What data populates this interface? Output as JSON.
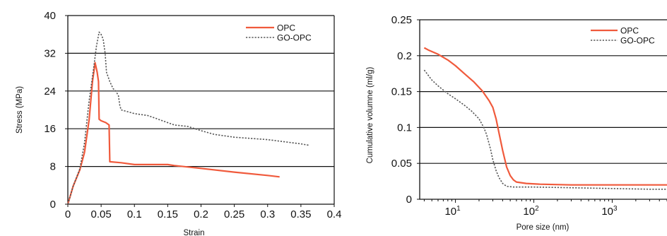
{
  "chart_data": [
    {
      "type": "line",
      "title": "",
      "xlabel": "Strain",
      "ylabel": "Stress (MPa)",
      "xlim": [
        0,
        0.4
      ],
      "ylim": [
        0,
        40
      ],
      "x_ticks": [
        "0",
        "0.05",
        "0.1",
        "0.15",
        "0.2",
        "0.25",
        "0.3",
        "0.35",
        "0.4"
      ],
      "y_ticks": [
        "0",
        "8",
        "16",
        "24",
        "32",
        "40"
      ],
      "grid": "horizontal",
      "legend": "top-right",
      "series": [
        {
          "name": "OPC",
          "color": "#f05a3c",
          "style": "solid",
          "points": [
            [
              0,
              0
            ],
            [
              0.008,
              3.8
            ],
            [
              0.018,
              7.3
            ],
            [
              0.025,
              11
            ],
            [
              0.032,
              18
            ],
            [
              0.037,
              26
            ],
            [
              0.041,
              30
            ],
            [
              0.044,
              28
            ],
            [
              0.046,
              26
            ],
            [
              0.047,
              18
            ],
            [
              0.05,
              17.7
            ],
            [
              0.057,
              17.3
            ],
            [
              0.062,
              16.8
            ],
            [
              0.063,
              9
            ],
            [
              0.08,
              8.8
            ],
            [
              0.1,
              8.4
            ],
            [
              0.15,
              8.4
            ],
            [
              0.16,
              8.2
            ],
            [
              0.2,
              7.6
            ],
            [
              0.25,
              6.8
            ],
            [
              0.3,
              6.1
            ],
            [
              0.318,
              5.8
            ]
          ]
        },
        {
          "name": "GO-OPC",
          "color": "#555555",
          "style": "dotted",
          "points": [
            [
              0,
              0
            ],
            [
              0.008,
              3.8
            ],
            [
              0.018,
              7.5
            ],
            [
              0.025,
              13
            ],
            [
              0.032,
              22
            ],
            [
              0.038,
              28
            ],
            [
              0.043,
              33.5
            ],
            [
              0.047,
              36.5
            ],
            [
              0.05,
              36
            ],
            [
              0.053,
              35
            ],
            [
              0.056,
              32
            ],
            [
              0.058,
              28
            ],
            [
              0.063,
              26
            ],
            [
              0.068,
              24.5
            ],
            [
              0.072,
              24
            ],
            [
              0.076,
              23
            ],
            [
              0.078,
              21
            ],
            [
              0.08,
              20
            ],
            [
              0.1,
              19.2
            ],
            [
              0.12,
              18.8
            ],
            [
              0.13,
              18.3
            ],
            [
              0.14,
              17.8
            ],
            [
              0.16,
              16.8
            ],
            [
              0.18,
              16.5
            ],
            [
              0.2,
              15.6
            ],
            [
              0.22,
              14.8
            ],
            [
              0.25,
              14.2
            ],
            [
              0.3,
              13.7
            ],
            [
              0.35,
              12.8
            ],
            [
              0.362,
              12.5
            ]
          ]
        }
      ]
    },
    {
      "type": "line",
      "title": "",
      "xlabel": "Pore size (nm)",
      "ylabel": "Cumulative volumne (ml/g)",
      "xscale": "log",
      "xlim": [
        3.5,
        5000
      ],
      "ylim": [
        0,
        0.25
      ],
      "x_ticks": [
        {
          "value": 10,
          "base": "10",
          "exp": "1"
        },
        {
          "value": 100,
          "base": "10",
          "exp": "2"
        },
        {
          "value": 1000,
          "base": "10",
          "exp": "3"
        }
      ],
      "y_ticks": [
        "0",
        "0.05",
        "0.1",
        "0.15",
        "0.2",
        "0.25"
      ],
      "grid": "horizontal",
      "legend": "top-right",
      "series": [
        {
          "name": "OPC",
          "color": "#f05a3c",
          "style": "solid",
          "points": [
            [
              4,
              0.211
            ],
            [
              4.5,
              0.208
            ],
            [
              6,
              0.202
            ],
            [
              8,
              0.194
            ],
            [
              10,
              0.186
            ],
            [
              13,
              0.175
            ],
            [
              17,
              0.164
            ],
            [
              22,
              0.151
            ],
            [
              27,
              0.137
            ],
            [
              30,
              0.128
            ],
            [
              33,
              0.112
            ],
            [
              36,
              0.092
            ],
            [
              40,
              0.068
            ],
            [
              45,
              0.045
            ],
            [
              50,
              0.033
            ],
            [
              55,
              0.027
            ],
            [
              60,
              0.024
            ],
            [
              80,
              0.022
            ],
            [
              120,
              0.021
            ],
            [
              300,
              0.02
            ],
            [
              1000,
              0.02
            ],
            [
              5000,
              0.02
            ]
          ]
        },
        {
          "name": "GO-OPC",
          "color": "#555555",
          "style": "dotted",
          "points": [
            [
              4,
              0.18
            ],
            [
              5,
              0.166
            ],
            [
              6,
              0.158
            ],
            [
              8,
              0.147
            ],
            [
              10,
              0.14
            ],
            [
              13,
              0.131
            ],
            [
              16,
              0.123
            ],
            [
              20,
              0.112
            ],
            [
              23,
              0.1
            ],
            [
              25,
              0.09
            ],
            [
              28,
              0.07
            ],
            [
              30,
              0.055
            ],
            [
              33,
              0.04
            ],
            [
              36,
              0.03
            ],
            [
              40,
              0.022
            ],
            [
              45,
              0.018
            ],
            [
              55,
              0.017
            ],
            [
              100,
              0.017
            ],
            [
              300,
              0.016
            ],
            [
              1000,
              0.015
            ],
            [
              3000,
              0.014
            ],
            [
              5000,
              0.014
            ]
          ]
        }
      ]
    }
  ]
}
